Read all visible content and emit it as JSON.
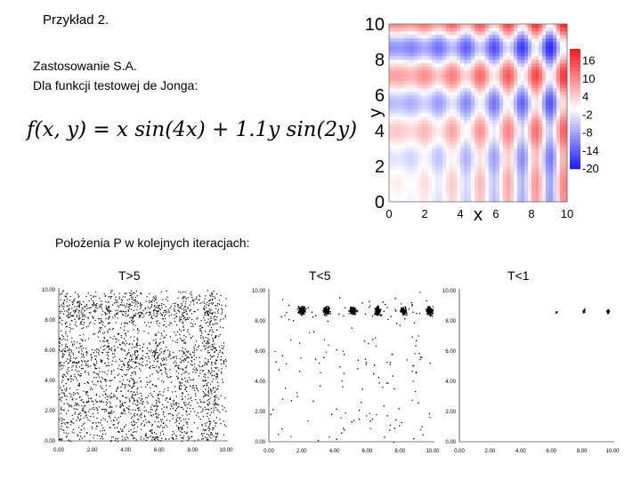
{
  "slide": {
    "title": "Przykład 2.",
    "application_line1": "Zastosowanie S.A.",
    "application_line2": "Dla funkcji testowej de Jonga:",
    "formula": "f(x, y) = x sin(4x) + 1.1y sin(2y)",
    "positions_caption": "Położenia P w kolejnych iteracjach:"
  },
  "chart_data": [
    {
      "type": "heatmap",
      "title": "",
      "function": "f(x, y) = x sin(4x) + 1.1y sin(2y)",
      "xlabel": "x",
      "ylabel": "y",
      "xlim": [
        0,
        10
      ],
      "ylim": [
        0,
        10
      ],
      "x_ticks": [
        "0",
        "2",
        "4",
        "6",
        "8",
        "10"
      ],
      "y_ticks": [
        "0",
        "2",
        "4",
        "6",
        "8",
        "10"
      ],
      "colorbar_ticks": [
        "16",
        "10",
        "4",
        "-2",
        "-8",
        "-14",
        "-20"
      ],
      "colorbar_range": [
        -20,
        20
      ],
      "colors": {
        "high": "#e8141c",
        "mid": "#ffffff",
        "low": "#1a1ae8"
      }
    },
    {
      "type": "scatter",
      "panel_title": "T>5",
      "xlim": [
        0,
        10
      ],
      "ylim": [
        0,
        10
      ],
      "x_ticks": [
        "0.00",
        "2.00",
        "4.00",
        "6.00",
        "8.00",
        "10.00"
      ],
      "y_ticks": [
        "0.00",
        "2.00",
        "4.00",
        "6.00",
        "8.00",
        "10.00"
      ],
      "points": 2600
    },
    {
      "type": "scatter",
      "panel_title": "T<5",
      "xlim": [
        0,
        10
      ],
      "ylim": [
        0,
        10
      ],
      "x_ticks": [
        "0.00",
        "2.00",
        "4.00",
        "6.00",
        "8.00",
        "10.00"
      ],
      "y_ticks": [
        "0.00",
        "2.00",
        "4.00",
        "6.00",
        "8.00",
        "10.00"
      ],
      "points": 1500
    },
    {
      "type": "scatter",
      "panel_title": "T<1",
      "xlim": [
        0,
        10
      ],
      "ylim": [
        0,
        10
      ],
      "x_ticks": [
        "0.00",
        "2.00",
        "4.00",
        "6.00",
        "8.00",
        "10.00"
      ],
      "y_ticks": [
        "0.00",
        "2.00",
        "4.00",
        "6.00",
        "8.00",
        "10.00"
      ],
      "points": 60
    }
  ]
}
